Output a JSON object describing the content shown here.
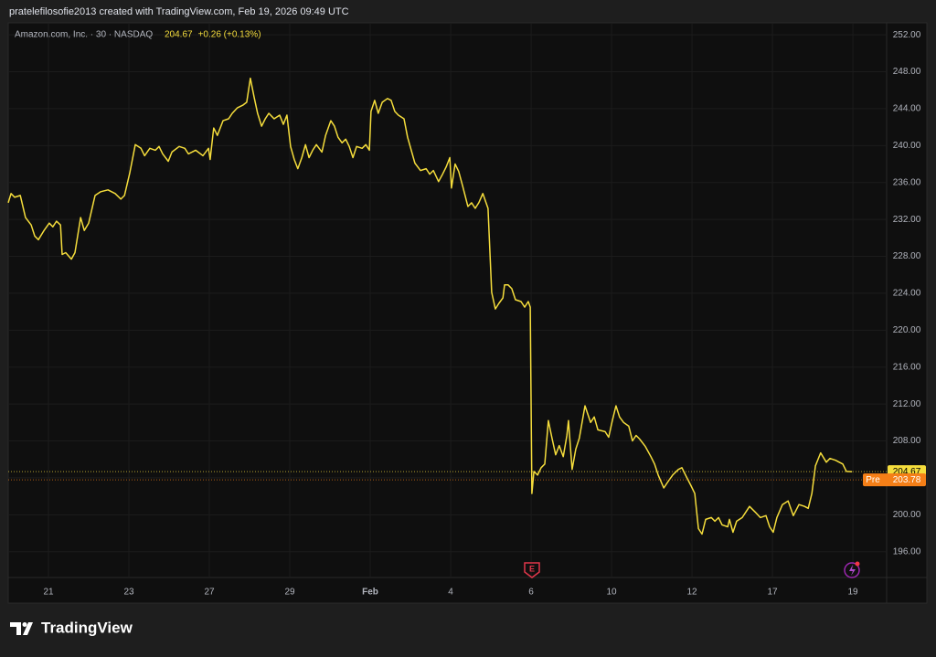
{
  "attribution": "pratelefilosofie2013 created with TradingView.com, Feb 19, 2026 09:49 UTC",
  "brand": "TradingView",
  "chart_data": {
    "type": "line",
    "symbol_info": "Amazon.com, Inc. · 30 · NASDAQ",
    "last_price": 204.67,
    "change_text": "+0.26 (+0.13%)",
    "pre_label": "Pre",
    "pre_price": 203.78,
    "earnings_label": "E",
    "color": "#f5dd3c",
    "grid": true,
    "xlim": [
      -1,
      20.84
    ],
    "ylim": [
      193.2,
      253.2
    ],
    "xticks": [
      {
        "value": 0,
        "label": "21"
      },
      {
        "value": 2,
        "label": "23"
      },
      {
        "value": 4,
        "label": "27"
      },
      {
        "value": 6,
        "label": "29"
      },
      {
        "value": 8,
        "label": "Feb"
      },
      {
        "value": 10,
        "label": "4"
      },
      {
        "value": 12,
        "label": "6"
      },
      {
        "value": 14,
        "label": "10"
      },
      {
        "value": 16,
        "label": "12"
      },
      {
        "value": 18,
        "label": "17"
      },
      {
        "value": 20,
        "label": "19"
      }
    ],
    "yticks": [
      {
        "value": 196,
        "label": "196.00"
      },
      {
        "value": 200,
        "label": "200.00"
      },
      {
        "value": 204,
        "label": "204.00"
      },
      {
        "value": 208,
        "label": "208.00"
      },
      {
        "value": 212,
        "label": "212.00"
      },
      {
        "value": 216,
        "label": "216.00"
      },
      {
        "value": 220,
        "label": "220.00"
      },
      {
        "value": 224,
        "label": "224.00"
      },
      {
        "value": 228,
        "label": "228.00"
      },
      {
        "value": 232,
        "label": "232.00"
      },
      {
        "value": 236,
        "label": "236.00"
      },
      {
        "value": 240,
        "label": "240.00"
      },
      {
        "value": 244,
        "label": "244.00"
      },
      {
        "value": 248,
        "label": "248.00"
      },
      {
        "value": 252,
        "label": "252.00"
      }
    ],
    "x": [
      -1.0,
      -0.93,
      -0.84,
      -0.7,
      -0.57,
      -0.43,
      -0.34,
      -0.25,
      -0.11,
      0.02,
      0.11,
      0.2,
      0.3,
      0.34,
      0.43,
      0.57,
      0.66,
      0.8,
      0.89,
      1.0,
      1.16,
      1.3,
      1.48,
      1.66,
      1.8,
      1.89,
      2.02,
      2.16,
      2.3,
      2.39,
      2.52,
      2.66,
      2.75,
      2.84,
      2.98,
      3.07,
      3.25,
      3.39,
      3.48,
      3.66,
      3.84,
      3.98,
      4.02,
      4.11,
      4.2,
      4.34,
      4.48,
      4.57,
      4.7,
      4.84,
      4.93,
      5.02,
      5.11,
      5.2,
      5.3,
      5.39,
      5.48,
      5.61,
      5.75,
      5.84,
      5.93,
      6.02,
      6.11,
      6.2,
      6.3,
      6.39,
      6.48,
      6.57,
      6.66,
      6.8,
      6.89,
      7.02,
      7.11,
      7.2,
      7.3,
      7.39,
      7.48,
      7.57,
      7.66,
      7.8,
      7.89,
      7.98,
      8.02,
      8.11,
      8.2,
      8.3,
      8.43,
      8.52,
      8.61,
      8.7,
      8.84,
      8.93,
      9.11,
      9.25,
      9.39,
      9.48,
      9.57,
      9.7,
      9.8,
      9.89,
      9.98,
      10.02,
      10.11,
      10.2,
      10.3,
      10.43,
      10.52,
      10.61,
      10.7,
      10.8,
      10.93,
      11.02,
      11.11,
      11.2,
      11.3,
      11.34,
      11.43,
      11.52,
      11.61,
      11.75,
      11.84,
      11.93,
      11.98,
      12.02,
      12.07,
      12.16,
      12.25,
      12.34,
      12.43,
      12.52,
      12.61,
      12.7,
      12.8,
      12.89,
      12.93,
      13.02,
      13.11,
      13.2,
      13.34,
      13.48,
      13.57,
      13.66,
      13.84,
      13.93,
      14.02,
      14.11,
      14.2,
      14.3,
      14.43,
      14.52,
      14.61,
      14.7,
      14.84,
      14.98,
      15.07,
      15.16,
      15.3,
      15.39,
      15.52,
      15.66,
      15.75,
      15.84,
      15.98,
      16.07,
      16.16,
      16.25,
      16.34,
      16.48,
      16.57,
      16.66,
      16.75,
      16.89,
      16.93,
      17.02,
      17.11,
      17.25,
      17.34,
      17.43,
      17.57,
      17.7,
      17.84,
      17.93,
      18.02,
      18.11,
      18.25,
      18.39,
      18.52,
      18.66,
      18.8,
      18.89,
      18.98,
      19.07,
      19.2,
      19.34,
      19.43,
      19.57,
      19.66,
      19.75,
      19.84,
      19.98
    ],
    "values": [
      233.8,
      234.8,
      234.4,
      234.6,
      232.2,
      231.4,
      230.2,
      229.8,
      230.8,
      231.6,
      231.2,
      231.8,
      231.4,
      228.2,
      228.4,
      227.7,
      228.4,
      232.2,
      230.8,
      231.6,
      234.6,
      235.0,
      235.2,
      234.8,
      234.2,
      234.6,
      237.0,
      240.1,
      239.7,
      238.9,
      239.7,
      239.5,
      239.9,
      239.1,
      238.3,
      239.3,
      239.9,
      239.7,
      239.1,
      239.5,
      238.9,
      239.7,
      238.5,
      241.9,
      241.1,
      242.7,
      242.9,
      243.5,
      244.1,
      244.4,
      244.7,
      247.3,
      245.3,
      243.5,
      242.1,
      242.9,
      243.5,
      242.9,
      243.3,
      242.3,
      243.3,
      239.9,
      238.5,
      237.5,
      238.7,
      240.1,
      238.7,
      239.5,
      240.1,
      239.3,
      241.1,
      242.7,
      242.1,
      240.9,
      240.3,
      240.7,
      239.9,
      238.7,
      239.9,
      239.7,
      240.1,
      239.5,
      243.7,
      244.9,
      243.5,
      244.7,
      245.1,
      244.9,
      243.7,
      243.3,
      242.9,
      240.9,
      238.1,
      237.3,
      237.5,
      236.9,
      237.3,
      236.1,
      236.9,
      237.7,
      238.7,
      235.4,
      238.0,
      237.2,
      235.6,
      233.4,
      233.8,
      233.2,
      233.8,
      234.8,
      233.2,
      224.1,
      222.3,
      222.9,
      223.5,
      224.9,
      224.9,
      224.5,
      223.3,
      223.1,
      222.5,
      223.1,
      222.5,
      202.3,
      204.7,
      204.3,
      205.1,
      205.5,
      210.2,
      208.3,
      206.5,
      207.5,
      206.3,
      208.6,
      210.2,
      204.9,
      207.1,
      208.3,
      211.8,
      210.0,
      210.6,
      209.2,
      209.0,
      208.4,
      210.2,
      211.8,
      210.6,
      210.0,
      209.6,
      208.0,
      208.6,
      208.2,
      207.4,
      206.3,
      205.5,
      204.3,
      202.9,
      203.5,
      204.3,
      204.9,
      205.1,
      204.3,
      203.1,
      202.3,
      198.5,
      197.9,
      199.5,
      199.7,
      199.3,
      199.7,
      198.9,
      198.7,
      199.5,
      198.1,
      199.3,
      199.7,
      200.3,
      200.9,
      200.3,
      199.7,
      199.9,
      198.7,
      198.1,
      199.7,
      201.1,
      201.5,
      199.9,
      201.1,
      200.9,
      200.7,
      202.3,
      205.3,
      206.7,
      205.7,
      206.1,
      205.9,
      205.7,
      205.5,
      204.7,
      204.67
    ]
  }
}
